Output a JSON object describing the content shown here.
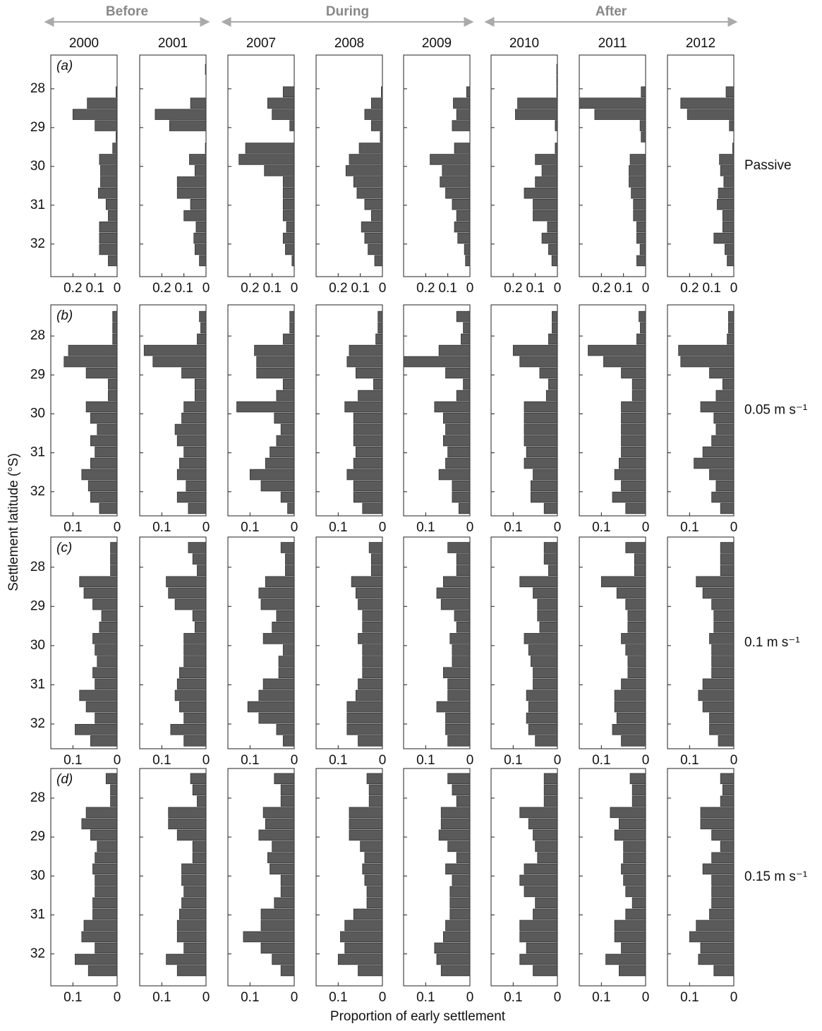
{
  "chart_data": {
    "type": "bar",
    "orientation": "horizontal",
    "y_label": "Settlement latitude (°S)",
    "x_label": "Proportion of early settlement",
    "color": "#5a5a5a",
    "groups": [
      {
        "name": "Before",
        "years": [
          "2000",
          "2001"
        ]
      },
      {
        "name": "During",
        "years": [
          "2007",
          "2008",
          "2009"
        ]
      },
      {
        "name": "After",
        "years": [
          "2010",
          "2011",
          "2012"
        ]
      }
    ],
    "y": [
      27.5,
      27.79,
      28.08,
      28.37,
      28.66,
      28.95,
      29.24,
      29.53,
      29.82,
      30.11,
      30.4,
      30.69,
      30.98,
      31.27,
      31.56,
      31.85,
      32.14,
      32.43
    ],
    "rows": [
      {
        "label": "(a)",
        "condition": "Passive",
        "xlim": [
          0,
          0.3
        ],
        "xticks": [
          0.2,
          0.1,
          0
        ],
        "ylim": [
          27.13,
          32.84
        ],
        "yticks": [
          28,
          29,
          30,
          31,
          32
        ],
        "panels": [
          [
            0,
            0,
            0.005,
            0.135,
            0.2,
            0.1,
            0.005,
            0.02,
            0.08,
            0.075,
            0.075,
            0.085,
            0.05,
            0.04,
            0.08,
            0.08,
            0.08,
            0.04
          ],
          [
            0.003,
            0,
            0,
            0.07,
            0.23,
            0.165,
            0,
            0.003,
            0.075,
            0.05,
            0.13,
            0.13,
            0.07,
            0.1,
            0.045,
            0.055,
            0.05,
            0.03
          ],
          [
            0,
            0,
            0.05,
            0.12,
            0.1,
            0.02,
            0,
            0.22,
            0.25,
            0.135,
            0.05,
            0.05,
            0.05,
            0.05,
            0.035,
            0.05,
            0.04,
            0.01
          ],
          [
            0,
            0,
            0.005,
            0.05,
            0.08,
            0.05,
            0.01,
            0.105,
            0.15,
            0.165,
            0.13,
            0.115,
            0.08,
            0.05,
            0.095,
            0.08,
            0.065,
            0.035
          ],
          [
            0,
            0,
            0.015,
            0.075,
            0.06,
            0.08,
            0,
            0.07,
            0.18,
            0.125,
            0.135,
            0.11,
            0.08,
            0.06,
            0.07,
            0.055,
            0.025,
            0.02
          ],
          [
            0.003,
            0.003,
            0.003,
            0.18,
            0.19,
            0.01,
            0,
            0.01,
            0.1,
            0.07,
            0.1,
            0.15,
            0.11,
            0.11,
            0.045,
            0.07,
            0.04,
            0.025
          ],
          [
            0,
            0,
            0.02,
            0.3,
            0.23,
            0.025,
            0.02,
            0,
            0.07,
            0.075,
            0.075,
            0.065,
            0.055,
            0.055,
            0.04,
            0.04,
            0.025,
            0.04
          ],
          [
            0,
            0,
            0.035,
            0.24,
            0.21,
            0.02,
            0,
            0.005,
            0.065,
            0.06,
            0.045,
            0.07,
            0.075,
            0.05,
            0.05,
            0.09,
            0.04,
            0.03
          ]
        ]
      },
      {
        "label": "(b)",
        "condition": "0.05 m s⁻¹",
        "xlim": [
          0,
          0.15
        ],
        "xticks": [
          0.1,
          0
        ],
        "ylim": [
          27.2,
          32.62
        ],
        "yticks": [
          28,
          29,
          30,
          31,
          32
        ],
        "panels": [
          [
            0.01,
            0.01,
            0.01,
            0.11,
            0.12,
            0.07,
            0.02,
            0.02,
            0.07,
            0.06,
            0.045,
            0.06,
            0.05,
            0.06,
            0.08,
            0.065,
            0.06,
            0.04
          ],
          [
            0.015,
            0.012,
            0.02,
            0.14,
            0.12,
            0.055,
            0.025,
            0.025,
            0.05,
            0.055,
            0.07,
            0.065,
            0.05,
            0.06,
            0.065,
            0.045,
            0.065,
            0.04
          ],
          [
            0.01,
            0.01,
            0.025,
            0.09,
            0.085,
            0.085,
            0.025,
            0.04,
            0.13,
            0.045,
            0.03,
            0.04,
            0.055,
            0.065,
            0.1,
            0.075,
            0.03,
            0.015
          ],
          [
            0.01,
            0.01,
            0.015,
            0.075,
            0.08,
            0.06,
            0.02,
            0.055,
            0.085,
            0.065,
            0.065,
            0.065,
            0.06,
            0.065,
            0.08,
            0.065,
            0.065,
            0.045
          ],
          [
            0.03,
            0.015,
            0.02,
            0.07,
            0.15,
            0.055,
            0.015,
            0.03,
            0.08,
            0.06,
            0.055,
            0.06,
            0.05,
            0.055,
            0.07,
            0.04,
            0.04,
            0.025
          ],
          [
            0.012,
            0.012,
            0.02,
            0.1,
            0.085,
            0.04,
            0.02,
            0.025,
            0.075,
            0.075,
            0.075,
            0.075,
            0.07,
            0.075,
            0.055,
            0.06,
            0.06,
            0.03
          ],
          [
            0.015,
            0.012,
            0.02,
            0.13,
            0.095,
            0.055,
            0.03,
            0.03,
            0.055,
            0.055,
            0.055,
            0.055,
            0.055,
            0.06,
            0.07,
            0.055,
            0.075,
            0.045
          ],
          [
            0.012,
            0.012,
            0.015,
            0.125,
            0.12,
            0.055,
            0.025,
            0.04,
            0.075,
            0.045,
            0.04,
            0.05,
            0.07,
            0.09,
            0.055,
            0.04,
            0.05,
            0.03
          ]
        ]
      },
      {
        "label": "(c)",
        "condition": "0.1 m s⁻¹",
        "xlim": [
          0,
          0.15
        ],
        "xticks": [
          0.1,
          0
        ],
        "ylim": [
          27.23,
          32.63
        ],
        "yticks": [
          28,
          29,
          30,
          31,
          32
        ],
        "panels": [
          [
            0.015,
            0.015,
            0.015,
            0.085,
            0.075,
            0.055,
            0.035,
            0.04,
            0.055,
            0.05,
            0.045,
            0.055,
            0.05,
            0.085,
            0.07,
            0.05,
            0.095,
            0.06
          ],
          [
            0.04,
            0.03,
            0.02,
            0.09,
            0.085,
            0.07,
            0.03,
            0.025,
            0.05,
            0.05,
            0.05,
            0.06,
            0.065,
            0.07,
            0.06,
            0.05,
            0.08,
            0.05
          ],
          [
            0.03,
            0.02,
            0.02,
            0.065,
            0.08,
            0.075,
            0.04,
            0.05,
            0.07,
            0.025,
            0.035,
            0.035,
            0.07,
            0.08,
            0.105,
            0.08,
            0.04,
            0.025
          ],
          [
            0.03,
            0.025,
            0.025,
            0.07,
            0.06,
            0.055,
            0.045,
            0.045,
            0.055,
            0.045,
            0.045,
            0.045,
            0.055,
            0.06,
            0.08,
            0.08,
            0.08,
            0.055
          ],
          [
            0.05,
            0.03,
            0.03,
            0.06,
            0.075,
            0.065,
            0.035,
            0.03,
            0.045,
            0.04,
            0.04,
            0.06,
            0.05,
            0.05,
            0.075,
            0.055,
            0.055,
            0.05
          ],
          [
            0.03,
            0.03,
            0.02,
            0.085,
            0.055,
            0.045,
            0.045,
            0.04,
            0.075,
            0.065,
            0.06,
            0.055,
            0.055,
            0.07,
            0.065,
            0.07,
            0.065,
            0.05
          ],
          [
            0.045,
            0.025,
            0.025,
            0.1,
            0.065,
            0.045,
            0.04,
            0.04,
            0.055,
            0.045,
            0.04,
            0.04,
            0.055,
            0.07,
            0.07,
            0.065,
            0.075,
            0.055
          ],
          [
            0.03,
            0.03,
            0.03,
            0.085,
            0.07,
            0.05,
            0.045,
            0.045,
            0.055,
            0.05,
            0.05,
            0.05,
            0.07,
            0.08,
            0.07,
            0.055,
            0.055,
            0.035
          ]
        ]
      },
      {
        "label": "(d)",
        "condition": "0.15 m s⁻¹",
        "xlim": [
          0,
          0.15
        ],
        "xticks": [
          0.1,
          0
        ],
        "ylim": [
          27.24,
          32.82
        ],
        "yticks": [
          28,
          29,
          30,
          31,
          32
        ],
        "panels": [
          [
            0.025,
            0.015,
            0.015,
            0.07,
            0.08,
            0.06,
            0.045,
            0.05,
            0.055,
            0.05,
            0.05,
            0.055,
            0.055,
            0.075,
            0.08,
            0.05,
            0.095,
            0.065
          ],
          [
            0.035,
            0.03,
            0.02,
            0.085,
            0.085,
            0.065,
            0.03,
            0.03,
            0.055,
            0.055,
            0.05,
            0.055,
            0.06,
            0.065,
            0.065,
            0.05,
            0.09,
            0.065
          ],
          [
            0.045,
            0.03,
            0.03,
            0.07,
            0.065,
            0.08,
            0.05,
            0.06,
            0.055,
            0.03,
            0.03,
            0.045,
            0.075,
            0.075,
            0.115,
            0.075,
            0.05,
            0.03
          ],
          [
            0.035,
            0.03,
            0.03,
            0.075,
            0.075,
            0.075,
            0.05,
            0.04,
            0.045,
            0.04,
            0.035,
            0.035,
            0.065,
            0.085,
            0.095,
            0.085,
            0.1,
            0.055
          ],
          [
            0.05,
            0.04,
            0.03,
            0.065,
            0.065,
            0.07,
            0.05,
            0.03,
            0.055,
            0.04,
            0.045,
            0.045,
            0.045,
            0.055,
            0.06,
            0.08,
            0.075,
            0.065
          ],
          [
            0.03,
            0.03,
            0.03,
            0.085,
            0.065,
            0.055,
            0.05,
            0.045,
            0.075,
            0.085,
            0.075,
            0.05,
            0.055,
            0.085,
            0.085,
            0.07,
            0.085,
            0.055
          ],
          [
            0.035,
            0.03,
            0.03,
            0.08,
            0.06,
            0.07,
            0.05,
            0.05,
            0.055,
            0.05,
            0.045,
            0.03,
            0.045,
            0.07,
            0.07,
            0.055,
            0.09,
            0.06
          ],
          [
            0.03,
            0.025,
            0.03,
            0.075,
            0.075,
            0.05,
            0.03,
            0.05,
            0.07,
            0.05,
            0.05,
            0.05,
            0.055,
            0.085,
            0.1,
            0.075,
            0.08,
            0.045
          ]
        ]
      }
    ]
  }
}
